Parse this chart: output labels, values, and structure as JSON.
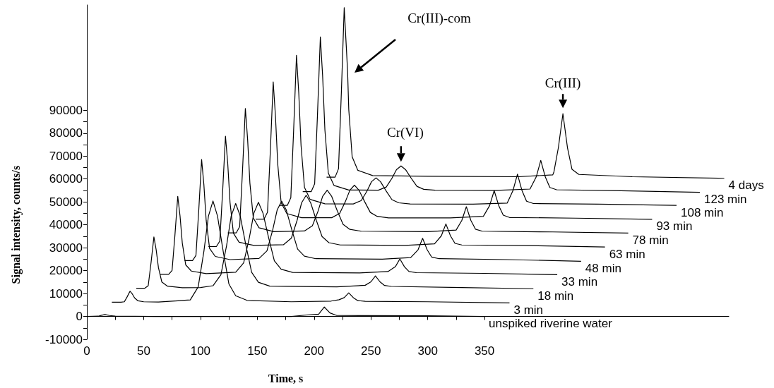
{
  "chart_data": {
    "type": "line",
    "xlabel": "Time, s",
    "ylabel": "Signal intensity, counts/s",
    "marker": "none",
    "line_style": "solid",
    "xlim": [
      0,
      565
    ],
    "ylim": [
      -10000,
      136000
    ],
    "xticks": [
      0,
      {
        "value": 25,
        "label": null
      },
      50,
      {
        "value": 75,
        "label": null
      },
      100,
      {
        "value": 125,
        "label": null
      },
      150,
      {
        "value": 175,
        "label": null
      },
      200,
      {
        "value": 225,
        "label": null
      },
      250,
      {
        "value": 275,
        "label": null
      },
      300,
      {
        "value": 325,
        "label": null
      },
      350
    ],
    "yticks": [
      -10000,
      {
        "value": -5000,
        "label": null
      },
      0,
      {
        "value": 5000,
        "label": null
      },
      10000,
      {
        "value": 15000,
        "label": null
      },
      20000,
      {
        "value": 25000,
        "label": null
      },
      30000,
      {
        "value": 35000,
        "label": null
      },
      40000,
      {
        "value": 45000,
        "label": null
      },
      50000,
      {
        "value": 55000,
        "label": null
      },
      60000,
      {
        "value": 65000,
        "label": null
      },
      70000,
      {
        "value": 75000,
        "label": null
      },
      80000,
      {
        "value": 85000,
        "label": null
      },
      90000
    ],
    "annotations": [
      "Cr(III)-com",
      {
        "text": "Cr(VI)",
        "x": 276.5,
        "y": 65700
      },
      {
        "text": "Cr(III)",
        "x": 419,
        "y": 88500
      }
    ],
    "series": [
      {
        "name": "unspiked riverine water",
        "color": "#000000",
        "x": [
          0,
          10,
          13,
          16,
          20,
          25,
          60,
          180,
          195,
          204,
          209,
          214,
          220,
          300,
          350
        ],
        "values": [
          0,
          100,
          500,
          800,
          400,
          100,
          0,
          0,
          700,
          1000,
          4100,
          1500,
          400,
          300,
          0
        ]
      },
      {
        "name": "3 min",
        "color": "#000000",
        "x": [
          22,
          30,
          33,
          35.5,
          38,
          40,
          42,
          45,
          50,
          63,
          91,
          98,
          103,
          107,
          111,
          115,
          120,
          125,
          131,
          141,
          180,
          215,
          222,
          226.5,
          230.5,
          234.5,
          238.5,
          245,
          300,
          372
        ],
        "values": [
          6200,
          6200,
          6400,
          8600,
          11000,
          9800,
          8100,
          6800,
          6400,
          6300,
          7200,
          12900,
          28400,
          43800,
          50400,
          43800,
          28400,
          14200,
          9000,
          7000,
          6400,
          6700,
          7300,
          8200,
          10300,
          8200,
          6900,
          6600,
          6400,
          5900
        ]
      },
      {
        "name": "18 min",
        "color": "#000000",
        "x": [
          43.5,
          51,
          54,
          56.5,
          59,
          61,
          63,
          66,
          71,
          84,
          100,
          111,
          118,
          123,
          127,
          131,
          135,
          140,
          145,
          151,
          161,
          220,
          245,
          250,
          254,
          258,
          262,
          268,
          330,
          393
        ],
        "values": [
          12300,
          12300,
          13400,
          23500,
          34700,
          29100,
          21300,
          15000,
          13200,
          12500,
          12600,
          13400,
          18200,
          31000,
          43800,
          49300,
          43800,
          31000,
          19300,
          14900,
          13200,
          12900,
          13600,
          15100,
          17700,
          15100,
          13500,
          13100,
          12600,
          12100
        ]
      },
      {
        "name": "33 min",
        "color": "#000000",
        "x": [
          64.5,
          72,
          75,
          77.5,
          80,
          82,
          84,
          87,
          92,
          105,
          131,
          138,
          143,
          147,
          151,
          155,
          160,
          165,
          171,
          181,
          240,
          265,
          271.5,
          275.5,
          279.5,
          283.5,
          290,
          350,
          414
        ],
        "values": [
          18400,
          18400,
          20100,
          35400,
          52400,
          43900,
          32000,
          22500,
          19800,
          18700,
          19300,
          23400,
          34300,
          45100,
          49800,
          45100,
          34300,
          24300,
          20600,
          19200,
          19000,
          19600,
          21700,
          25100,
          21700,
          19600,
          19100,
          18800,
          18200
        ]
      },
      {
        "name": "48 min",
        "color": "#000000",
        "x": [
          86,
          93,
          96,
          98.5,
          101,
          103,
          105,
          108,
          113,
          126,
          151.5,
          158.5,
          163.5,
          167.5,
          171.5,
          175.5,
          180.5,
          185.5,
          191.5,
          201.5,
          260,
          285,
          291.5,
          295.5,
          299.5,
          303.5,
          310,
          370,
          435
        ],
        "values": [
          24400,
          24400,
          26600,
          46500,
          68500,
          57500,
          42000,
          29700,
          26200,
          24800,
          25300,
          28600,
          37600,
          46500,
          50300,
          46500,
          37600,
          29400,
          26300,
          25200,
          25000,
          25700,
          29100,
          34100,
          29100,
          25900,
          25200,
          24800,
          24100
        ]
      },
      {
        "name": "63 min",
        "color": "#000000",
        "x": [
          107,
          114,
          117,
          119.5,
          122,
          124,
          126,
          129,
          134,
          147,
          173,
          180,
          185,
          189,
          193,
          197,
          202,
          207,
          213,
          223,
          280,
          306,
          312,
          316,
          320,
          324,
          330,
          390,
          456
        ],
        "values": [
          30500,
          30500,
          32900,
          54600,
          78700,
          66700,
          49800,
          36300,
          32400,
          31000,
          31300,
          34200,
          41900,
          49600,
          52900,
          49600,
          41900,
          34900,
          32200,
          31200,
          31000,
          31700,
          35200,
          40400,
          35200,
          31900,
          31200,
          30900,
          30300
        ]
      },
      {
        "name": "78 min",
        "color": "#000000",
        "x": [
          124,
          131.5,
          134.5,
          137,
          139.5,
          141.5,
          143.5,
          146.5,
          151.5,
          164.5,
          191.5,
          198.5,
          203.5,
          207.5,
          211.5,
          215.5,
          220.5,
          225.5,
          231.5,
          241.5,
          300,
          325,
          330,
          334,
          338,
          342,
          348,
          410,
          476.5
        ],
        "values": [
          36500,
          36500,
          39200,
          63700,
          90800,
          77200,
          58200,
          43000,
          38700,
          37000,
          37300,
          39600,
          46000,
          52400,
          55100,
          52400,
          46000,
          40200,
          38000,
          37200,
          37000,
          37700,
          41900,
          47900,
          41900,
          38100,
          37200,
          36900,
          36400
        ]
      },
      {
        "name": "93 min",
        "color": "#000000",
        "x": [
          148.5,
          156,
          159,
          161.5,
          164,
          166,
          168,
          171,
          176,
          189,
          215.5,
          222.5,
          227.5,
          231.5,
          235.5,
          239.5,
          244.5,
          249.5,
          255.5,
          265.5,
          320,
          349,
          354.5,
          358.5,
          362.5,
          366.5,
          372,
          430,
          497.5
        ],
        "values": [
          42500,
          42500,
          45500,
          72500,
          102400,
          87400,
          66500,
          49700,
          44900,
          43100,
          43100,
          45000,
          50100,
          55100,
          57300,
          55100,
          50100,
          45400,
          43700,
          43000,
          43000,
          43700,
          48400,
          54900,
          48400,
          44200,
          43200,
          42900,
          42400
        ]
      },
      {
        "name": "108 min",
        "color": "#000000",
        "x": [
          169,
          176.5,
          179.5,
          182,
          184.5,
          186.5,
          188.5,
          191.5,
          196.5,
          209.5,
          234.5,
          241.5,
          246.5,
          250.5,
          254.5,
          258.5,
          263.5,
          268.5,
          274.5,
          284.5,
          340,
          370,
          375,
          379,
          383,
          387,
          393,
          450,
          519
        ],
        "values": [
          48500,
          48500,
          51800,
          81300,
          114000,
          97600,
          74700,
          56400,
          51100,
          49200,
          49100,
          50600,
          54700,
          58800,
          60500,
          58800,
          54700,
          51000,
          49600,
          49100,
          49000,
          49500,
          54900,
          62100,
          54900,
          50300,
          49300,
          49000,
          48500
        ]
      },
      {
        "name": "123 min",
        "color": "#000000",
        "x": [
          190,
          197.5,
          200.5,
          203,
          205.5,
          207.5,
          209.5,
          212.5,
          217.5,
          230.5,
          256.5,
          263.5,
          268.5,
          272.5,
          276.5,
          280.5,
          285.5,
          290.5,
          296.5,
          306.5,
          360,
          390,
          395.5,
          399.5,
          403.5,
          407.5,
          413.5,
          470,
          539.5
        ],
        "values": [
          54500,
          54500,
          57900,
          88300,
          122000,
          105100,
          81500,
          62600,
          57200,
          55200,
          55100,
          56500,
          60300,
          64100,
          65700,
          64100,
          60300,
          56800,
          55500,
          55100,
          55000,
          55600,
          60900,
          68100,
          60900,
          56300,
          55300,
          54900,
          54200
        ]
      },
      {
        "name": "4 days",
        "color": "#000000",
        "x": [
          211,
          218.5,
          221.5,
          224,
          226.5,
          228.5,
          229.5,
          230.5,
          233.5,
          238.5,
          251.5,
          300,
          380,
          410,
          411,
          415,
          419,
          423,
          427,
          433,
          480,
          561
        ],
        "values": [
          60800,
          60800,
          64500,
          97800,
          134800,
          116300,
          106700,
          90400,
          69700,
          63800,
          61500,
          61200,
          61000,
          61800,
          62900,
          73700,
          88500,
          73700,
          64200,
          62000,
          61000,
          60300
        ]
      }
    ]
  }
}
